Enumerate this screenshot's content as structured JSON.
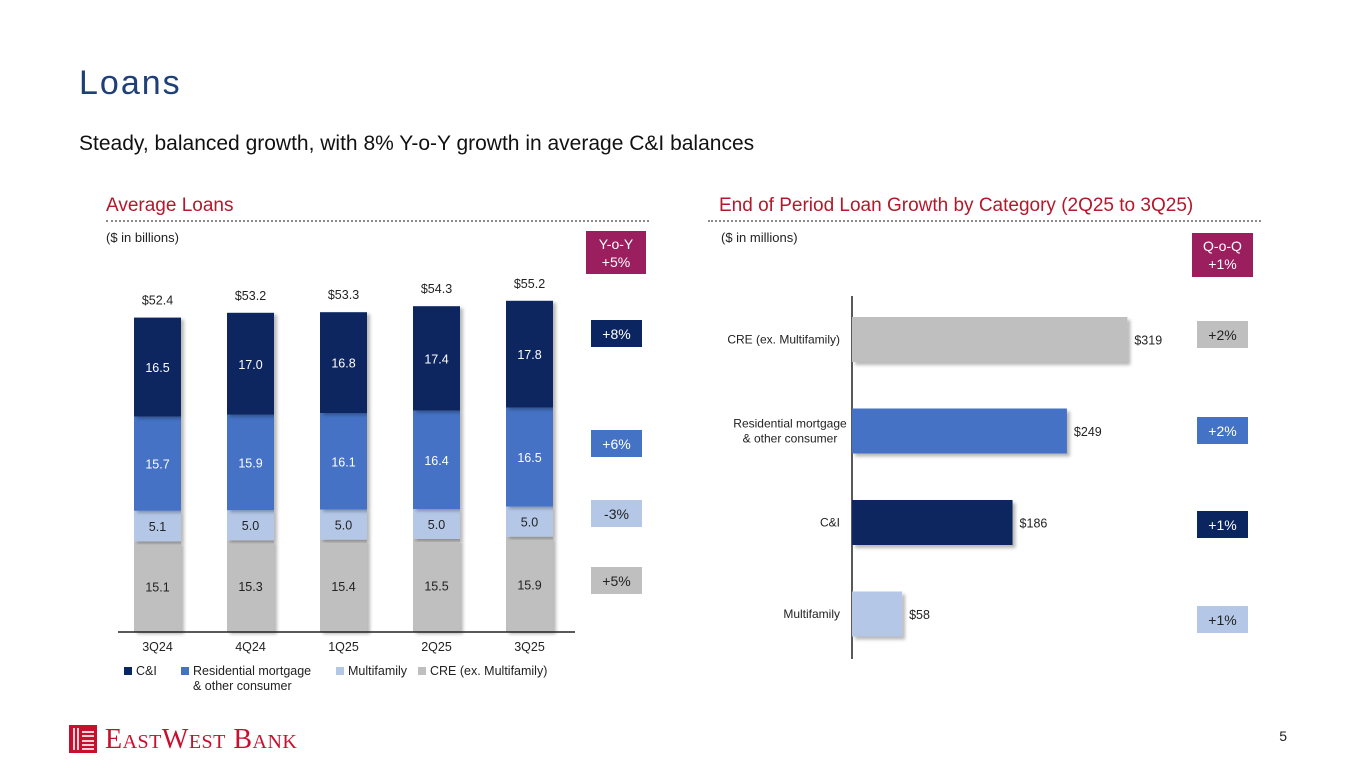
{
  "page": {
    "title": "Loans",
    "subtitle": "Steady, balanced growth, with 8% Y-o-Y growth in average C&I balances",
    "page_number": "5"
  },
  "logo": {
    "text": "EASTWESTBANK",
    "text_display": "EastWest Bank",
    "color": "#c8102e"
  },
  "left": {
    "section_title": "Average Loans",
    "unit_label": "($ in billions)",
    "header_badge": {
      "line1": "Y-o-Y",
      "line2": "+5%",
      "color": "#9b1f5f"
    },
    "growth_badges": [
      {
        "text": "+8%",
        "color": "#0b2560",
        "text_color": "#ffffff"
      },
      {
        "text": "+6%",
        "color": "#4472c4",
        "text_color": "#ffffff"
      },
      {
        "text": "-3%",
        "color": "#b4c7e7",
        "text_color": "#222222"
      },
      {
        "text": "+5%",
        "color": "#bfbfbf",
        "text_color": "#222222"
      }
    ],
    "legend": [
      {
        "label": "C&I",
        "color": "#0b2560"
      },
      {
        "label": "Residential mortgage",
        "label2": "& other consumer",
        "color": "#4472c4"
      },
      {
        "label": "Multifamily",
        "color": "#b4c7e7"
      },
      {
        "label": "CRE (ex. Multifamily)",
        "color": "#bfbfbf"
      }
    ]
  },
  "right": {
    "section_title": "End of Period Loan Growth by Category (2Q25 to 3Q25)",
    "unit_label": "($ in millions)",
    "header_badge": {
      "line1": "Q-o-Q",
      "line2": "+1%",
      "color": "#9b1f5f"
    },
    "growth_badges": [
      {
        "text": "+2%",
        "color": "#bfbfbf",
        "text_color": "#222222"
      },
      {
        "text": "+2%",
        "color": "#4472c4",
        "text_color": "#ffffff"
      },
      {
        "text": "+1%",
        "color": "#0b2560",
        "text_color": "#ffffff"
      },
      {
        "text": "+1%",
        "color": "#b4c7e7",
        "text_color": "#222222"
      }
    ]
  },
  "chart_data": [
    {
      "type": "bar",
      "stacked": true,
      "title": "Average Loans",
      "ylabel": "$ in billions",
      "categories": [
        "3Q24",
        "4Q24",
        "1Q25",
        "2Q25",
        "3Q25"
      ],
      "totals": [
        "$52.4",
        "$53.2",
        "$53.3",
        "$54.3",
        "$55.2"
      ],
      "series": [
        {
          "name": "CRE (ex. Multifamily)",
          "values": [
            15.1,
            15.3,
            15.4,
            15.5,
            15.9
          ],
          "labels": [
            "15.1",
            "15.3",
            "15.4",
            "15.5",
            "15.9"
          ],
          "color": "#bfbfbf",
          "label_color": "#222222"
        },
        {
          "name": "Multifamily",
          "values": [
            5.1,
            5.0,
            5.0,
            5.0,
            5.0
          ],
          "labels": [
            "5.1",
            "5.0",
            "5.0",
            "5.0",
            "5.0"
          ],
          "color": "#b4c7e7",
          "label_color": "#222222"
        },
        {
          "name": "Residential mortgage & other consumer",
          "values": [
            15.7,
            15.9,
            16.1,
            16.4,
            16.5
          ],
          "labels": [
            "15.7",
            "15.9",
            "16.1",
            "16.4",
            "16.5"
          ],
          "color": "#4472c4",
          "label_color": "#ffffff"
        },
        {
          "name": "C&I",
          "values": [
            16.5,
            17.0,
            16.8,
            17.4,
            17.8
          ],
          "labels": [
            "16.5",
            "17.0",
            "16.8",
            "17.4",
            "17.8"
          ],
          "color": "#0b2560",
          "label_color": "#ffffff"
        }
      ],
      "ylim": [
        0,
        60
      ]
    },
    {
      "type": "bar",
      "orientation": "horizontal",
      "title": "End of Period Loan Growth by Category (2Q25 to 3Q25)",
      "xlabel": "$ in millions",
      "categories": [
        "CRE (ex. Multifamily)",
        "Residential mortgage & other consumer",
        "C&I",
        "Multifamily"
      ],
      "category_lines": [
        [
          "CRE (ex. Multifamily)"
        ],
        [
          "Residential mortgage",
          "& other consumer"
        ],
        [
          "C&I"
        ],
        [
          "Multifamily"
        ]
      ],
      "values": [
        319,
        249,
        186,
        58
      ],
      "value_labels": [
        "$319",
        "$249",
        "$186",
        "$58"
      ],
      "colors": [
        "#bfbfbf",
        "#4472c4",
        "#0b2560",
        "#b4c7e7"
      ],
      "xlim": [
        0,
        380
      ]
    }
  ]
}
